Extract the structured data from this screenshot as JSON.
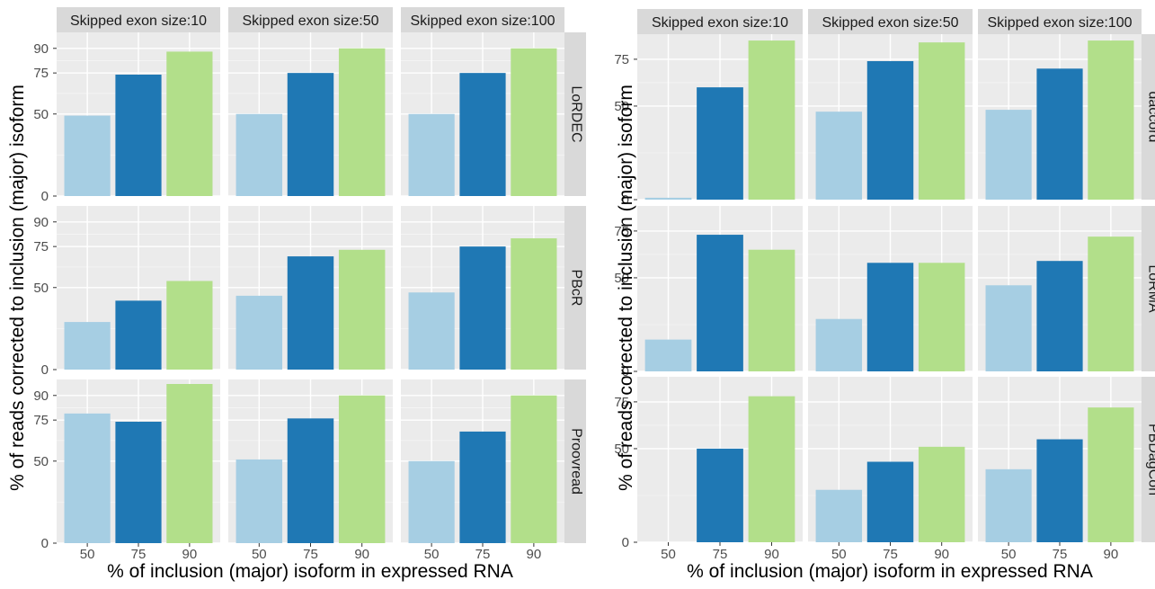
{
  "colors": {
    "panel_bg": "#EBEBEB",
    "strip_bg": "#D9D9D9",
    "grid_major": "#FFFFFF",
    "grid_minor": "#F5F5F5",
    "tick_text": "#4D4D4D",
    "bar_colors": [
      "#A6CEE3",
      "#1F78B4",
      "#B2DF8A"
    ]
  },
  "chart_data": [
    {
      "type": "bar",
      "layout": "facet-grid",
      "title": "",
      "xlabel": "% of inclusion (major) isoform in expressed RNA",
      "ylabel": "% of reads corrected to inclusion (major) isoform",
      "categories": [
        "50",
        "75",
        "90"
      ],
      "column_facets": [
        "Skipped exon size:10",
        "Skipped exon size:50",
        "Skipped exon size:100"
      ],
      "row_facets": [
        "LoRDEC",
        "PBcR",
        "Proovread"
      ],
      "yticks": [
        0,
        50,
        75,
        90
      ],
      "ylim": [
        0,
        97
      ],
      "grid": true,
      "panels": [
        [
          [
            49,
            74,
            88
          ],
          [
            50,
            75,
            90
          ],
          [
            50,
            75,
            90
          ]
        ],
        [
          [
            29,
            42,
            54
          ],
          [
            45,
            69,
            73
          ],
          [
            47,
            75,
            80
          ]
        ],
        [
          [
            79,
            74,
            97
          ],
          [
            51,
            76,
            90
          ],
          [
            50,
            68,
            90
          ]
        ]
      ]
    },
    {
      "type": "bar",
      "layout": "facet-grid",
      "title": "",
      "xlabel": "% of inclusion (major) isoform in expressed RNA",
      "ylabel": "% of reads corrected to inclusion (major) isoform",
      "categories": [
        "50",
        "75",
        "90"
      ],
      "column_facets": [
        "Skipped exon size:10",
        "Skipped exon size:50",
        "Skipped exon size:100"
      ],
      "row_facets": [
        "daccord",
        "LoRMA",
        "PBDagCon"
      ],
      "yticks": [
        0,
        50,
        75
      ],
      "ylim": [
        0,
        86
      ],
      "grid": true,
      "panels": [
        [
          [
            1,
            60,
            85
          ],
          [
            47,
            74,
            84
          ],
          [
            48,
            70,
            85
          ]
        ],
        [
          [
            17,
            73,
            65
          ],
          [
            28,
            58,
            58
          ],
          [
            46,
            59,
            72
          ]
        ],
        [
          [
            0,
            50,
            78
          ],
          [
            28,
            43,
            51
          ],
          [
            39,
            55,
            72
          ]
        ]
      ]
    }
  ]
}
